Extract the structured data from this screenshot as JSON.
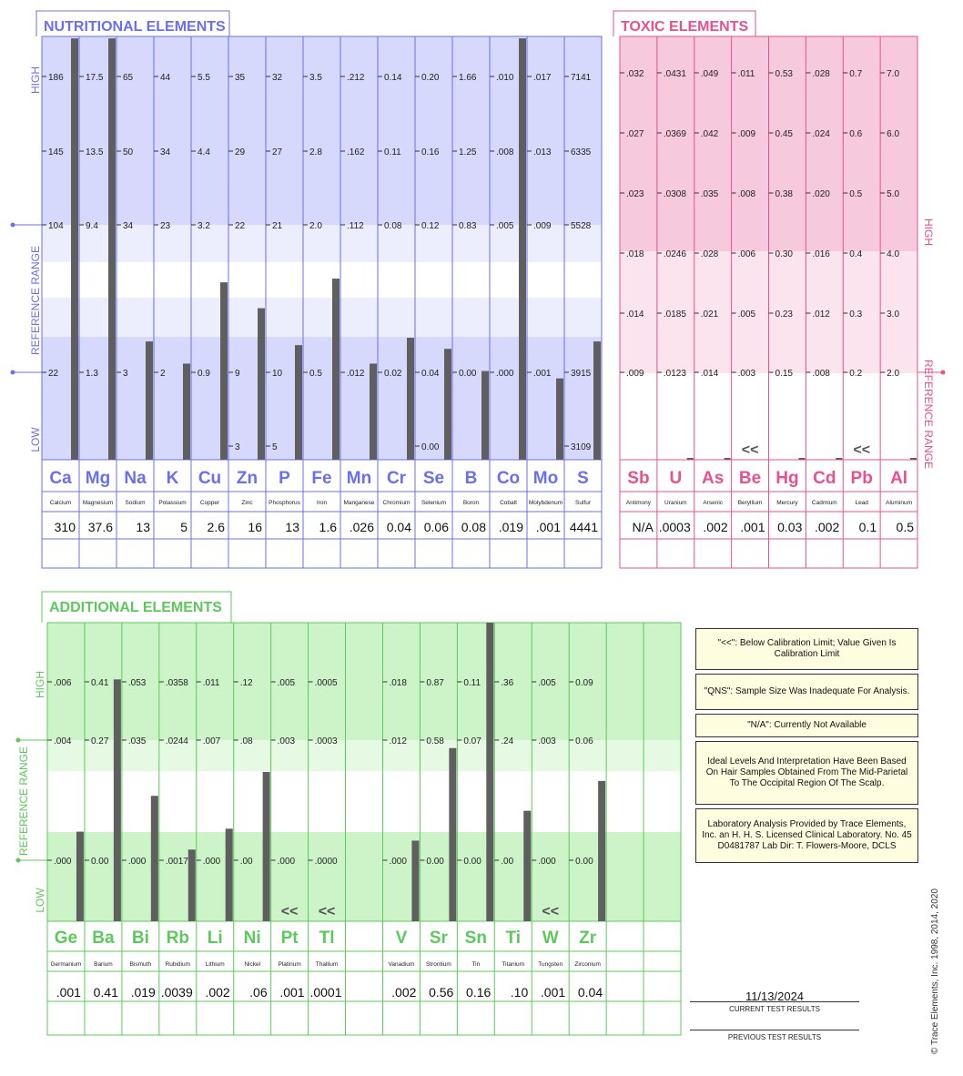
{
  "chart_data": [
    {
      "type": "bar",
      "title": "NUTRITIONAL ELEMENTS",
      "axis_labels": {
        "high": "HIGH",
        "reference_range": "REFERENCE RANGE",
        "low": "LOW"
      },
      "colors": {
        "accent": "#6a6ff0",
        "band": "#d6d9fb",
        "band_light": "#eceefd",
        "bar": "#5f5f5f"
      },
      "columns": [
        {
          "symbol": "Ca",
          "name": "Calcium",
          "ticks": [
            "186",
            "145",
            "104",
            "22"
          ],
          "low_tick": "",
          "result": "310",
          "level": 1.14
        },
        {
          "symbol": "Mg",
          "name": "Magnesium",
          "ticks": [
            "17.5",
            "13.5",
            "9.4",
            "1.3"
          ],
          "low_tick": "",
          "result": "37.6",
          "level": 1.14
        },
        {
          "symbol": "Na",
          "name": "Sodium",
          "ticks": [
            "65",
            "50",
            "34",
            "3"
          ],
          "low_tick": "",
          "result": "13",
          "level": 0.32
        },
        {
          "symbol": "K",
          "name": "Potassium",
          "ticks": [
            "44",
            "34",
            "23",
            "2"
          ],
          "low_tick": "",
          "result": "5",
          "level": 0.26
        },
        {
          "symbol": "Cu",
          "name": "Copper",
          "ticks": [
            "5.5",
            "4.4",
            "3.2",
            "0.9"
          ],
          "low_tick": "",
          "result": "2.6",
          "level": 0.48
        },
        {
          "symbol": "Zn",
          "name": "Zinc",
          "ticks": [
            "35",
            "29",
            "22",
            "9"
          ],
          "low_tick": "3",
          "result": "16",
          "level": 0.41
        },
        {
          "symbol": "P",
          "name": "Phosphorus",
          "ticks": [
            "32",
            "27",
            "21",
            "10"
          ],
          "low_tick": "5",
          "result": "13",
          "level": 0.31
        },
        {
          "symbol": "Fe",
          "name": "Iron",
          "ticks": [
            "3.5",
            "2.8",
            "2.0",
            "0.5"
          ],
          "low_tick": "",
          "result": "1.6",
          "level": 0.49
        },
        {
          "symbol": "Mn",
          "name": "Manganese",
          "ticks": [
            ".212",
            ".162",
            ".112",
            ".012"
          ],
          "low_tick": "",
          "result": ".026",
          "level": 0.26
        },
        {
          "symbol": "Cr",
          "name": "Chromium",
          "ticks": [
            "0.14",
            "0.11",
            "0.08",
            "0.02"
          ],
          "low_tick": "",
          "result": "0.04",
          "level": 0.33
        },
        {
          "symbol": "Se",
          "name": "Selenium",
          "ticks": [
            "0.20",
            "0.16",
            "0.12",
            "0.04"
          ],
          "low_tick": "0.00",
          "result": "0.06",
          "level": 0.3
        },
        {
          "symbol": "B",
          "name": "Boron",
          "ticks": [
            "1.66",
            "1.25",
            "0.83",
            "0.00"
          ],
          "low_tick": "",
          "result": "0.08",
          "level": 0.24
        },
        {
          "symbol": "Co",
          "name": "Cobalt",
          "ticks": [
            ".010",
            ".008",
            ".005",
            ".000"
          ],
          "low_tick": "",
          "result": ".019",
          "level": 1.14
        },
        {
          "symbol": "Mo",
          "name": "Molybdenum",
          "ticks": [
            ".017",
            ".013",
            ".009",
            ".001"
          ],
          "low_tick": "",
          "result": ".001",
          "level": 0.22
        },
        {
          "symbol": "S",
          "name": "Sulfur",
          "ticks": [
            "7141",
            "6335",
            "5528",
            "3915"
          ],
          "low_tick": "3109",
          "result": "4441",
          "level": 0.32
        }
      ]
    },
    {
      "type": "bar",
      "title": "TOXIC ELEMENTS",
      "axis_labels": {
        "high": "HIGH",
        "reference_range": "REFERENCE RANGE"
      },
      "colors": {
        "accent": "#e8508f",
        "band": "#f7c9dd",
        "band_light": "#fbe4ee",
        "bar": "#5f5f5f"
      },
      "columns": [
        {
          "symbol": "Sb",
          "name": "Antimony",
          "ticks": [
            ".032",
            ".027",
            ".023",
            ".018",
            ".014",
            ".009"
          ],
          "result": "N/A",
          "level": 0,
          "below_limit": false
        },
        {
          "symbol": "U",
          "name": "Uranium",
          "ticks": [
            ".0431",
            ".0369",
            ".0308",
            ".0246",
            ".0185",
            ".0123"
          ],
          "result": ".0003",
          "level": 0.005,
          "below_limit": false
        },
        {
          "symbol": "As",
          "name": "Arsenic",
          "ticks": [
            ".049",
            ".042",
            ".035",
            ".028",
            ".021",
            ".014"
          ],
          "result": ".002",
          "level": 0.005,
          "below_limit": false
        },
        {
          "symbol": "Be",
          "name": "Beryllium",
          "ticks": [
            ".011",
            ".009",
            ".008",
            ".006",
            ".005",
            ".003"
          ],
          "result": ".001",
          "level": 0,
          "below_limit": true
        },
        {
          "symbol": "Hg",
          "name": "Mercury",
          "ticks": [
            "0.53",
            "0.45",
            "0.38",
            "0.30",
            "0.23",
            "0.15"
          ],
          "result": "0.03",
          "level": 0.005,
          "below_limit": false
        },
        {
          "symbol": "Cd",
          "name": "Cadmium",
          "ticks": [
            ".028",
            ".024",
            ".020",
            ".016",
            ".012",
            ".008"
          ],
          "result": ".002",
          "level": 0.005,
          "below_limit": false
        },
        {
          "symbol": "Pb",
          "name": "Lead",
          "ticks": [
            "0.7",
            "0.6",
            "0.5",
            "0.4",
            "0.3",
            "0.2"
          ],
          "result": "0.1",
          "level": 0,
          "below_limit": true
        },
        {
          "symbol": "Al",
          "name": "Aluminum",
          "ticks": [
            "7.0",
            "6.0",
            "5.0",
            "4.0",
            "3.0",
            "2.0"
          ],
          "result": "0.5",
          "level": 0.005,
          "below_limit": false
        }
      ]
    },
    {
      "type": "bar",
      "title": "ADDITIONAL ELEMENTS",
      "axis_labels": {
        "high": "HIGH",
        "reference_range": "REFERENCE RANGE",
        "low": "LOW"
      },
      "colors": {
        "accent": "#5cc95c",
        "band": "#cdf3c9",
        "band_light": "#e6f9e3",
        "bar": "#5f5f5f"
      },
      "columns": [
        {
          "symbol": "Ge",
          "name": "Germanium",
          "ticks": [
            ".006",
            ".004",
            ".000"
          ],
          "result": ".001",
          "level": 0.3,
          "below_limit": false
        },
        {
          "symbol": "Ba",
          "name": "Barium",
          "ticks": [
            "0.41",
            "0.27",
            "0.00"
          ],
          "result": "0.41",
          "level": 0.81,
          "below_limit": false
        },
        {
          "symbol": "Bi",
          "name": "Bismuth",
          "ticks": [
            ".053",
            ".035",
            ".000"
          ],
          "result": ".019",
          "level": 0.42,
          "below_limit": false
        },
        {
          "symbol": "Rb",
          "name": "Rubidium",
          "ticks": [
            ".0358",
            ".0244",
            ".0017"
          ],
          "result": ".0039",
          "level": 0.24,
          "below_limit": false
        },
        {
          "symbol": "Li",
          "name": "Lithium",
          "ticks": [
            ".011",
            ".007",
            ".000"
          ],
          "result": ".002",
          "level": 0.31,
          "below_limit": false
        },
        {
          "symbol": "Ni",
          "name": "Nickel",
          "ticks": [
            ".12",
            ".08",
            ".00"
          ],
          "result": ".06",
          "level": 0.5,
          "below_limit": false
        },
        {
          "symbol": "Pt",
          "name": "Platinum",
          "ticks": [
            ".005",
            ".003",
            ".000"
          ],
          "result": ".001",
          "level": 0,
          "below_limit": true
        },
        {
          "symbol": "Tl",
          "name": "Thallium",
          "ticks": [
            ".0005",
            ".0003",
            ".0000"
          ],
          "result": ".0001",
          "level": 0,
          "below_limit": true
        },
        {
          "symbol": "",
          "name": "",
          "ticks": [],
          "result": "",
          "level": 0,
          "below_limit": false
        },
        {
          "symbol": "V",
          "name": "Vanadium",
          "ticks": [
            ".018",
            ".012",
            ".000"
          ],
          "result": ".002",
          "level": 0.27,
          "below_limit": false
        },
        {
          "symbol": "Sr",
          "name": "Strontium",
          "ticks": [
            "0.87",
            "0.58",
            "0.00"
          ],
          "result": "0.56",
          "level": 0.58,
          "below_limit": false
        },
        {
          "symbol": "Sn",
          "name": "Tin",
          "ticks": [
            "0.11",
            "0.07",
            "0.00"
          ],
          "result": "0.16",
          "level": 1.0,
          "below_limit": false
        },
        {
          "symbol": "Ti",
          "name": "Titanium",
          "ticks": [
            ".36",
            ".24",
            ".00"
          ],
          "result": ".10",
          "level": 0.37,
          "below_limit": false
        },
        {
          "symbol": "W",
          "name": "Tungsten",
          "ticks": [
            ".005",
            ".003",
            ".000"
          ],
          "result": ".001",
          "level": 0,
          "below_limit": true
        },
        {
          "symbol": "Zr",
          "name": "Zirconium",
          "ticks": [
            "0.09",
            "0.06",
            "0.00"
          ],
          "result": "0.04",
          "level": 0.47,
          "below_limit": false
        },
        {
          "symbol": "",
          "name": "",
          "ticks": [],
          "result": "",
          "level": 0,
          "below_limit": false
        },
        {
          "symbol": "",
          "name": "",
          "ticks": [],
          "result": "",
          "level": 0,
          "below_limit": false
        }
      ]
    }
  ],
  "below_limit_marker": "<<",
  "legend": [
    "\"<<\": Below Calibration Limit; Value Given Is Calibration Limit",
    "\"QNS\": Sample Size Was Inadequate For Analysis.",
    "\"N/A\": Currently Not Available",
    "Ideal Levels And Interpretation Have Been Based On Hair Samples Obtained From The Mid-Parietal To The Occipital Region Of The Scalp.",
    "Laboratory Analysis Provided by Trace Elements, Inc. an H. H. S. Licensed Clinical Laboratory. No. 45 D0481787  Lab Dir: T. Flowers-Moore, DCLS"
  ],
  "test_date": "11/13/2024",
  "current_label": "CURRENT TEST RESULTS",
  "previous_label": "PREVIOUS TEST RESULTS",
  "copyright": "© Trace Elements, Inc. 1998, 2014, 2020"
}
